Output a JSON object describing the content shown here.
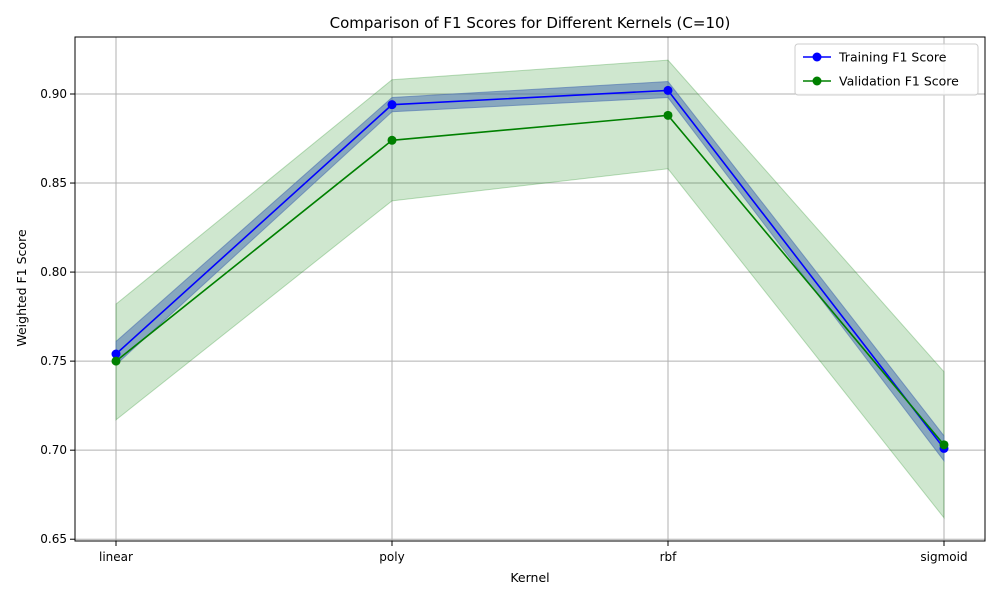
{
  "chart_data": {
    "type": "line",
    "title": "Comparison of F1 Scores for Different Kernels (C=10)",
    "xlabel": "Kernel",
    "ylabel": "Weighted F1 Score",
    "categories": [
      "linear",
      "poly",
      "rbf",
      "sigmoid"
    ],
    "ylim": [
      0.649,
      0.932
    ],
    "yticks": [
      0.65,
      0.7,
      0.75,
      0.8,
      0.85,
      0.9
    ],
    "ytick_labels": [
      "0.65",
      "0.70",
      "0.75",
      "0.80",
      "0.85",
      "0.90"
    ],
    "grid": true,
    "legend_position": "top-right",
    "series": [
      {
        "name": "Training F1 Score",
        "color": "#0000ff",
        "band_color": "#4c72b0",
        "values": [
          0.754,
          0.894,
          0.902,
          0.701
        ],
        "band_lower": [
          0.748,
          0.89,
          0.898,
          0.694
        ],
        "band_upper": [
          0.761,
          0.898,
          0.907,
          0.708
        ]
      },
      {
        "name": "Validation F1 Score",
        "color": "#008000",
        "band_color": "#008000",
        "values": [
          0.75,
          0.874,
          0.888,
          0.703
        ],
        "band_lower": [
          0.717,
          0.84,
          0.858,
          0.662
        ],
        "band_upper": [
          0.782,
          0.908,
          0.919,
          0.744
        ]
      }
    ]
  }
}
